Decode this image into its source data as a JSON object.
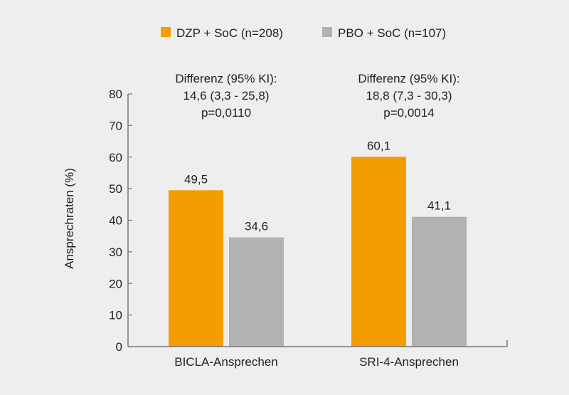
{
  "chart_data": {
    "type": "bar",
    "categories": [
      "BICLA-Ansprechen",
      "SRI-4-Ansprechen"
    ],
    "series": [
      {
        "name": "DZP + SoC (n=208)",
        "values": [
          49.5,
          60.1
        ],
        "labels": [
          "49,5",
          "60,1"
        ],
        "color": "#f59c00"
      },
      {
        "name": "PBO + SoC (n=107)",
        "values": [
          34.6,
          41.1
        ],
        "labels": [
          "34,6",
          "41,1"
        ],
        "color": "#b2b2b2"
      }
    ],
    "ylabel": "Ansprechraten (%)",
    "ylim": [
      0,
      80
    ],
    "yticks": [
      0,
      10,
      20,
      30,
      40,
      50,
      60,
      70,
      80
    ],
    "grid": false,
    "legend_position": "top",
    "annotations": [
      {
        "lines": [
          "Differenz (95% KI):",
          "14,6 (3,3 - 25,8)",
          "p=0,0110"
        ]
      },
      {
        "lines": [
          "Differenz (95% KI):",
          "18,8 (7,3 - 30,3)",
          "p=0,0014"
        ]
      }
    ]
  }
}
